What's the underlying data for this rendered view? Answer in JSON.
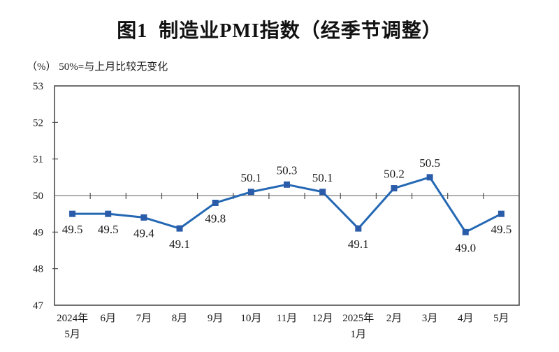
{
  "chart": {
    "title": "图1  制造业PMI指数（经季节调整）",
    "note": "（%） 50%=与上月比较无变化"
  },
  "chart_data": {
    "type": "line",
    "title": "图1  制造业PMI指数（经季节调整）",
    "note": "（%） 50%=与上月比较无变化",
    "categories": [
      "2024年\n5月",
      "6月",
      "7月",
      "8月",
      "9月",
      "10月",
      "11月",
      "12月",
      "2025年\n1月",
      "2月",
      "3月",
      "4月",
      "5月"
    ],
    "values": [
      49.5,
      49.5,
      49.4,
      49.1,
      49.8,
      50.1,
      50.3,
      50.1,
      49.1,
      50.2,
      50.5,
      49.0,
      49.5
    ],
    "xlabel": "",
    "ylabel": "(%)",
    "ylim": [
      47,
      53
    ],
    "ytick_step": 1,
    "yticks": [
      47,
      48,
      49,
      50,
      51,
      52,
      53
    ],
    "reference_line": 50,
    "label_decimals": 1,
    "label_position": [
      "below",
      "below",
      "below",
      "below",
      "below",
      "above",
      "above",
      "above",
      "below",
      "above",
      "above",
      "below",
      "below"
    ],
    "legend": "none",
    "grid": "off",
    "colors": {
      "line": "#2468b4",
      "marker": "#2b5ca9",
      "axis": "#4d4d4d",
      "refline": "#7f7f7f",
      "text": "#1a1a1a"
    }
  }
}
